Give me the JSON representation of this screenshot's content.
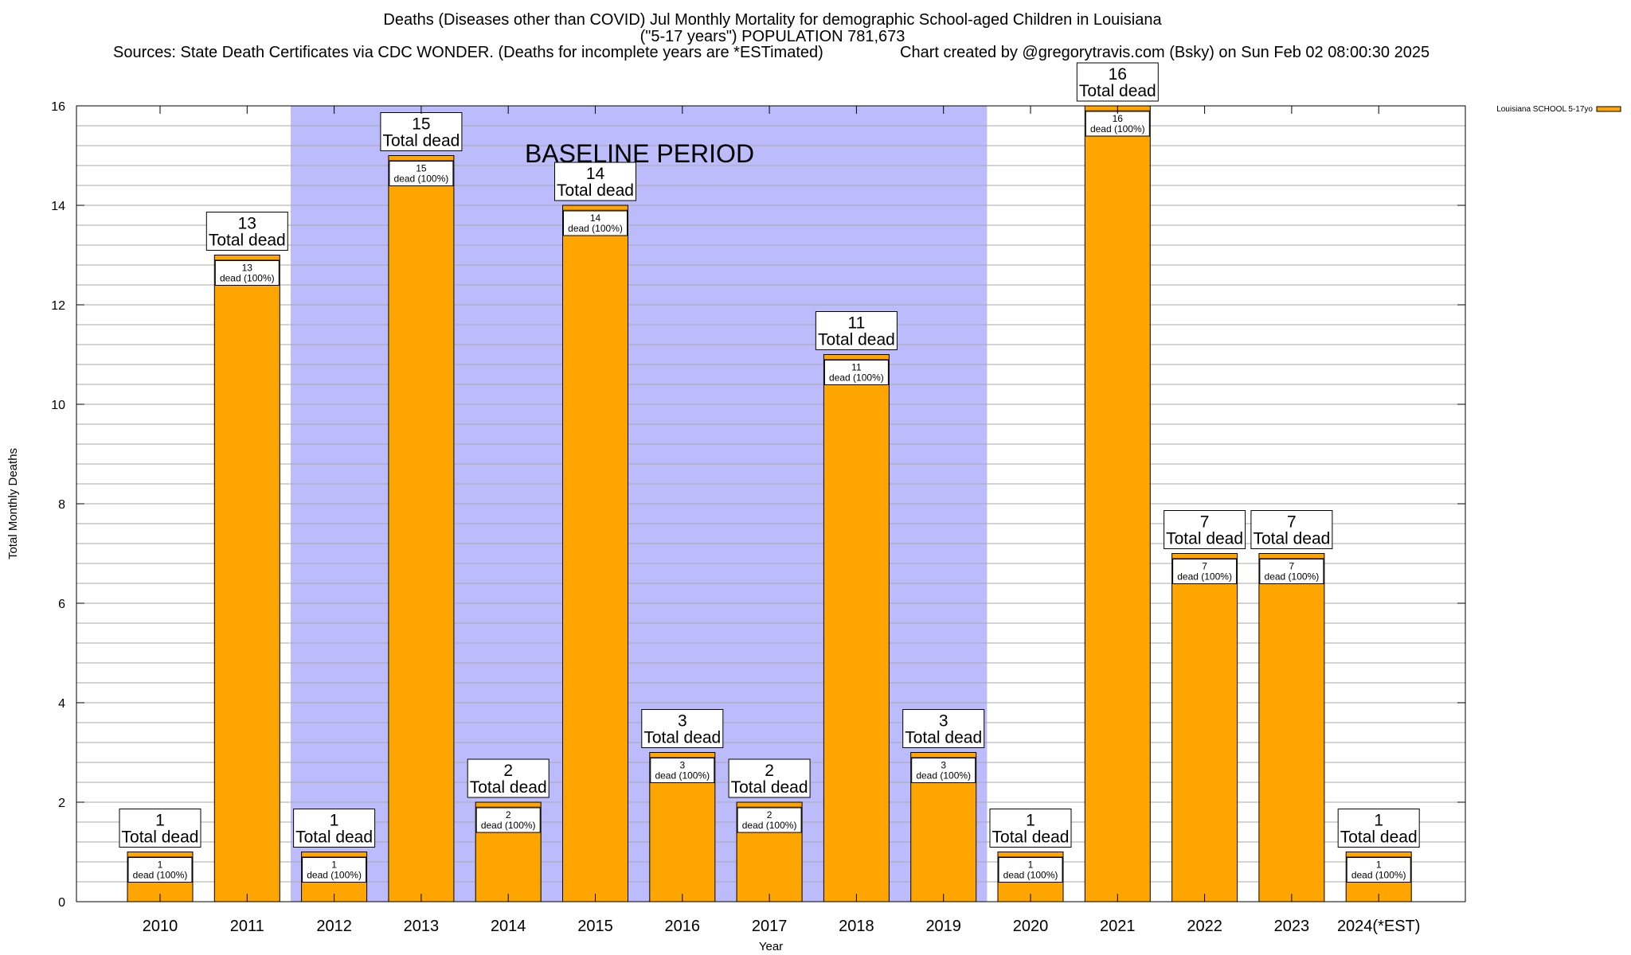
{
  "chart_data": {
    "type": "bar",
    "title": "Deaths (Diseases other than COVID) Jul Monthly Mortality for demographic School-aged Children in Louisiana",
    "subtitle": "(\"5-17 years\") POPULATION 781,673",
    "sources": "Sources: State Death Certificates via CDC WONDER. (Deaths for incomplete years are *ESTimated)",
    "credit": "Chart created by @gregorytravis.com (Bsky) on Sun Feb 02 08:00:30 2025",
    "xlabel": "Year",
    "ylabel": "Total Monthly Deaths",
    "ylim": [
      0,
      16
    ],
    "y_ticks": [
      0,
      2,
      4,
      6,
      8,
      10,
      12,
      14,
      16
    ],
    "grid": true,
    "categories": [
      "2010",
      "2011",
      "2012",
      "2013",
      "2014",
      "2015",
      "2016",
      "2017",
      "2018",
      "2019",
      "2020",
      "2021",
      "2022",
      "2023",
      "2024(*EST)"
    ],
    "series": [
      {
        "name": "Louisiana SCHOOL 5-17yo",
        "values": [
          1,
          13,
          1,
          15,
          2,
          14,
          3,
          2,
          11,
          3,
          1,
          16,
          7,
          7,
          1
        ],
        "color": "#ffa500"
      }
    ],
    "total_label_word": "Total dead",
    "inner_label_word": "dead (100%)",
    "baseline": {
      "label": "BASELINE PERIOD",
      "start_category": "2012",
      "end_category": "2019",
      "color": "#bcbcfc"
    },
    "legend": {
      "placement": "top-right",
      "entries": [
        "Louisiana SCHOOL 5-17yo"
      ]
    }
  }
}
